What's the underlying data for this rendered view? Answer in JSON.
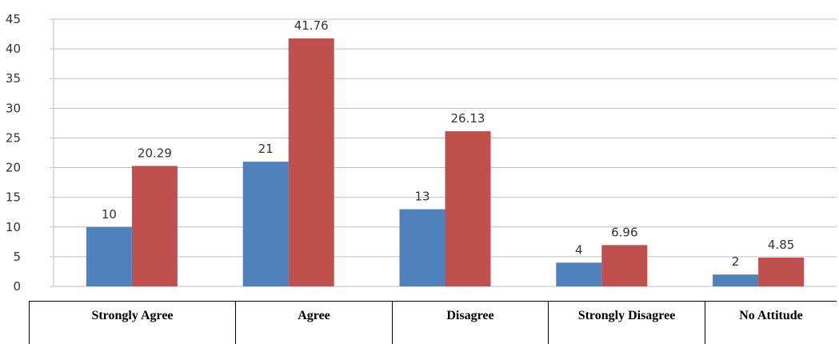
{
  "chart_data": {
    "type": "bar",
    "categories": [
      "Strongly Agree",
      "Agree",
      "Disagree",
      "Strongly Disagree",
      "No Attitude"
    ],
    "series": [
      {
        "values": [
          10,
          21,
          13,
          4,
          2
        ],
        "color": "#4f81bd"
      },
      {
        "values": [
          20.29,
          41.76,
          26.13,
          6.96,
          4.85
        ],
        "color": "#c0504d"
      }
    ],
    "data_labels": [
      [
        "10",
        "21",
        "13",
        "4",
        "2"
      ],
      [
        "20.29",
        "41.76",
        "26.13",
        "6.96",
        "4.85"
      ]
    ],
    "ylim": [
      0,
      45
    ],
    "yticks": [
      0,
      5,
      10,
      15,
      20,
      25,
      30,
      35,
      40,
      45
    ],
    "grid": true,
    "title": "",
    "xlabel": "",
    "ylabel": ""
  }
}
